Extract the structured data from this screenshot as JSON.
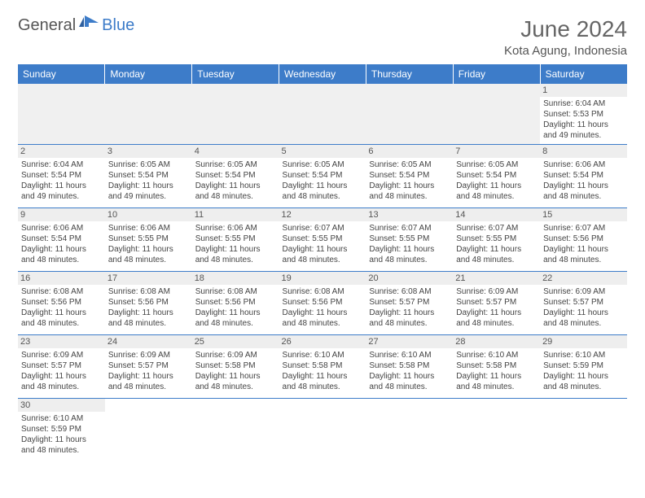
{
  "logo": {
    "part1": "General",
    "part2": "Blue"
  },
  "header": {
    "title": "June 2024",
    "location": "Kota Agung, Indonesia"
  },
  "colors": {
    "header_bg": "#3d7cc9",
    "header_text": "#ffffff",
    "daynum_bg": "#eeeeee",
    "cell_border": "#3d7cc9",
    "body_text": "#444444",
    "title_text": "#666666"
  },
  "columns": [
    "Sunday",
    "Monday",
    "Tuesday",
    "Wednesday",
    "Thursday",
    "Friday",
    "Saturday"
  ],
  "weeks": [
    [
      null,
      null,
      null,
      null,
      null,
      null,
      {
        "day": "1",
        "sunrise": "Sunrise: 6:04 AM",
        "sunset": "Sunset: 5:53 PM",
        "daylight": "Daylight: 11 hours and 49 minutes."
      }
    ],
    [
      {
        "day": "2",
        "sunrise": "Sunrise: 6:04 AM",
        "sunset": "Sunset: 5:54 PM",
        "daylight": "Daylight: 11 hours and 49 minutes."
      },
      {
        "day": "3",
        "sunrise": "Sunrise: 6:05 AM",
        "sunset": "Sunset: 5:54 PM",
        "daylight": "Daylight: 11 hours and 49 minutes."
      },
      {
        "day": "4",
        "sunrise": "Sunrise: 6:05 AM",
        "sunset": "Sunset: 5:54 PM",
        "daylight": "Daylight: 11 hours and 48 minutes."
      },
      {
        "day": "5",
        "sunrise": "Sunrise: 6:05 AM",
        "sunset": "Sunset: 5:54 PM",
        "daylight": "Daylight: 11 hours and 48 minutes."
      },
      {
        "day": "6",
        "sunrise": "Sunrise: 6:05 AM",
        "sunset": "Sunset: 5:54 PM",
        "daylight": "Daylight: 11 hours and 48 minutes."
      },
      {
        "day": "7",
        "sunrise": "Sunrise: 6:05 AM",
        "sunset": "Sunset: 5:54 PM",
        "daylight": "Daylight: 11 hours and 48 minutes."
      },
      {
        "day": "8",
        "sunrise": "Sunrise: 6:06 AM",
        "sunset": "Sunset: 5:54 PM",
        "daylight": "Daylight: 11 hours and 48 minutes."
      }
    ],
    [
      {
        "day": "9",
        "sunrise": "Sunrise: 6:06 AM",
        "sunset": "Sunset: 5:54 PM",
        "daylight": "Daylight: 11 hours and 48 minutes."
      },
      {
        "day": "10",
        "sunrise": "Sunrise: 6:06 AM",
        "sunset": "Sunset: 5:55 PM",
        "daylight": "Daylight: 11 hours and 48 minutes."
      },
      {
        "day": "11",
        "sunrise": "Sunrise: 6:06 AM",
        "sunset": "Sunset: 5:55 PM",
        "daylight": "Daylight: 11 hours and 48 minutes."
      },
      {
        "day": "12",
        "sunrise": "Sunrise: 6:07 AM",
        "sunset": "Sunset: 5:55 PM",
        "daylight": "Daylight: 11 hours and 48 minutes."
      },
      {
        "day": "13",
        "sunrise": "Sunrise: 6:07 AM",
        "sunset": "Sunset: 5:55 PM",
        "daylight": "Daylight: 11 hours and 48 minutes."
      },
      {
        "day": "14",
        "sunrise": "Sunrise: 6:07 AM",
        "sunset": "Sunset: 5:55 PM",
        "daylight": "Daylight: 11 hours and 48 minutes."
      },
      {
        "day": "15",
        "sunrise": "Sunrise: 6:07 AM",
        "sunset": "Sunset: 5:56 PM",
        "daylight": "Daylight: 11 hours and 48 minutes."
      }
    ],
    [
      {
        "day": "16",
        "sunrise": "Sunrise: 6:08 AM",
        "sunset": "Sunset: 5:56 PM",
        "daylight": "Daylight: 11 hours and 48 minutes."
      },
      {
        "day": "17",
        "sunrise": "Sunrise: 6:08 AM",
        "sunset": "Sunset: 5:56 PM",
        "daylight": "Daylight: 11 hours and 48 minutes."
      },
      {
        "day": "18",
        "sunrise": "Sunrise: 6:08 AM",
        "sunset": "Sunset: 5:56 PM",
        "daylight": "Daylight: 11 hours and 48 minutes."
      },
      {
        "day": "19",
        "sunrise": "Sunrise: 6:08 AM",
        "sunset": "Sunset: 5:56 PM",
        "daylight": "Daylight: 11 hours and 48 minutes."
      },
      {
        "day": "20",
        "sunrise": "Sunrise: 6:08 AM",
        "sunset": "Sunset: 5:57 PM",
        "daylight": "Daylight: 11 hours and 48 minutes."
      },
      {
        "day": "21",
        "sunrise": "Sunrise: 6:09 AM",
        "sunset": "Sunset: 5:57 PM",
        "daylight": "Daylight: 11 hours and 48 minutes."
      },
      {
        "day": "22",
        "sunrise": "Sunrise: 6:09 AM",
        "sunset": "Sunset: 5:57 PM",
        "daylight": "Daylight: 11 hours and 48 minutes."
      }
    ],
    [
      {
        "day": "23",
        "sunrise": "Sunrise: 6:09 AM",
        "sunset": "Sunset: 5:57 PM",
        "daylight": "Daylight: 11 hours and 48 minutes."
      },
      {
        "day": "24",
        "sunrise": "Sunrise: 6:09 AM",
        "sunset": "Sunset: 5:57 PM",
        "daylight": "Daylight: 11 hours and 48 minutes."
      },
      {
        "day": "25",
        "sunrise": "Sunrise: 6:09 AM",
        "sunset": "Sunset: 5:58 PM",
        "daylight": "Daylight: 11 hours and 48 minutes."
      },
      {
        "day": "26",
        "sunrise": "Sunrise: 6:10 AM",
        "sunset": "Sunset: 5:58 PM",
        "daylight": "Daylight: 11 hours and 48 minutes."
      },
      {
        "day": "27",
        "sunrise": "Sunrise: 6:10 AM",
        "sunset": "Sunset: 5:58 PM",
        "daylight": "Daylight: 11 hours and 48 minutes."
      },
      {
        "day": "28",
        "sunrise": "Sunrise: 6:10 AM",
        "sunset": "Sunset: 5:58 PM",
        "daylight": "Daylight: 11 hours and 48 minutes."
      },
      {
        "day": "29",
        "sunrise": "Sunrise: 6:10 AM",
        "sunset": "Sunset: 5:59 PM",
        "daylight": "Daylight: 11 hours and 48 minutes."
      }
    ],
    [
      {
        "day": "30",
        "sunrise": "Sunrise: 6:10 AM",
        "sunset": "Sunset: 5:59 PM",
        "daylight": "Daylight: 11 hours and 48 minutes."
      },
      null,
      null,
      null,
      null,
      null,
      null
    ]
  ]
}
